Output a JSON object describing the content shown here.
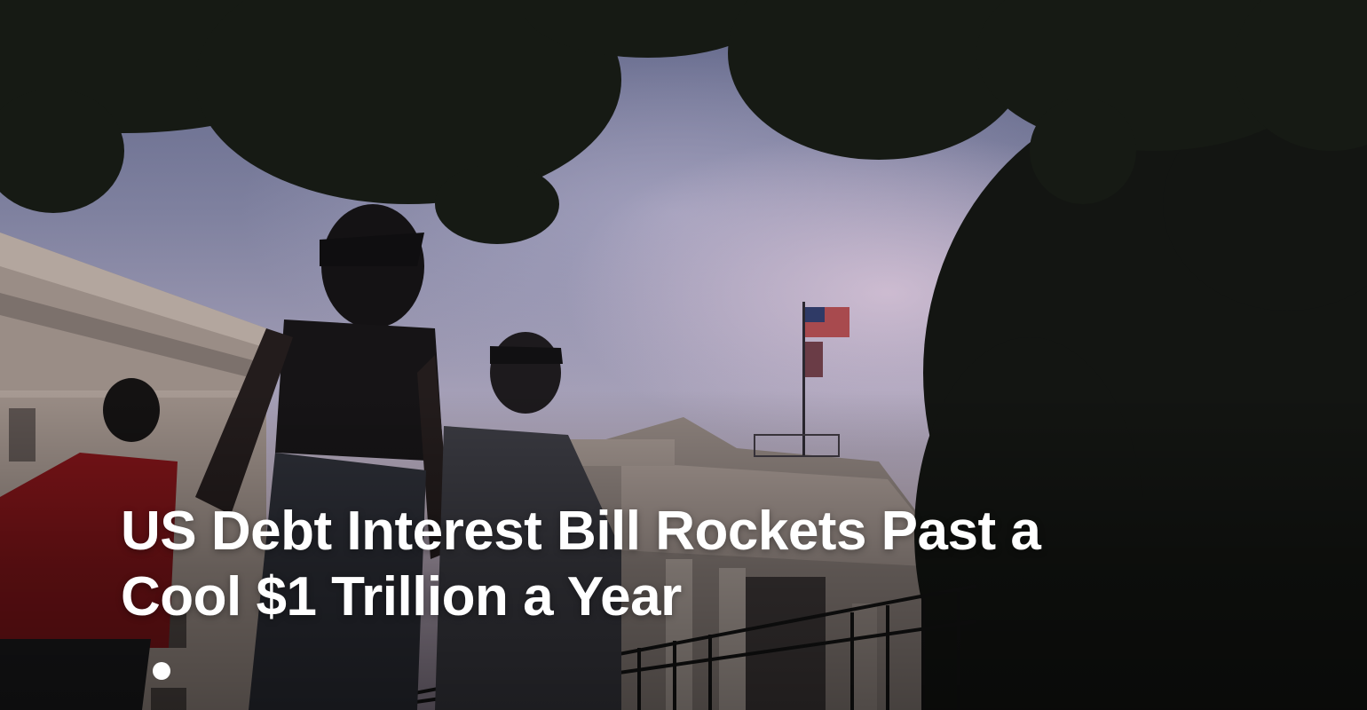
{
  "article": {
    "headline_line1": "US Debt Interest Bill Rockets Past a",
    "headline_line2": "Cool $1 Trillion a Year"
  },
  "carousel": {
    "slides_visible": 1,
    "active_index": 0
  },
  "colors": {
    "headline_text": "#ffffff",
    "dot_active": "#ffffff"
  },
  "icons": {
    "flag": "us-flag-icon"
  }
}
